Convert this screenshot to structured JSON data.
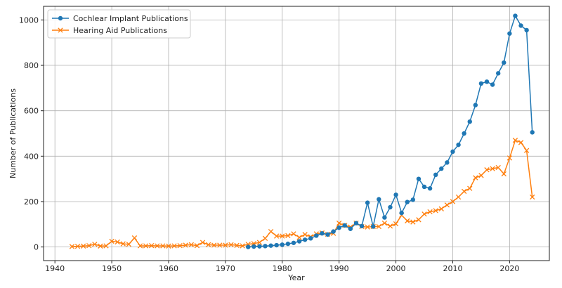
{
  "chart_data": {
    "type": "line",
    "title": "",
    "xlabel": "Year",
    "ylabel": "Number of Publications",
    "xlim": [
      1938,
      2027
    ],
    "ylim": [
      -60,
      1060
    ],
    "xticks": [
      1940,
      1950,
      1960,
      1970,
      1980,
      1990,
      2000,
      2010,
      2020
    ],
    "yticks": [
      0,
      200,
      400,
      600,
      800,
      1000
    ],
    "grid": true,
    "legend_position": "top-left",
    "series": [
      {
        "name": "Cochlear Implant Publications",
        "color": "#1f77b4",
        "marker": "circle",
        "x": [
          1974,
          1975,
          1976,
          1977,
          1978,
          1979,
          1980,
          1981,
          1982,
          1983,
          1984,
          1985,
          1986,
          1987,
          1988,
          1989,
          1990,
          1991,
          1992,
          1993,
          1994,
          1995,
          1996,
          1997,
          1998,
          1999,
          2000,
          2001,
          2002,
          2003,
          2004,
          2005,
          2006,
          2007,
          2008,
          2009,
          2010,
          2011,
          2012,
          2013,
          2014,
          2015,
          2016,
          2017,
          2018,
          2019,
          2020,
          2021,
          2022,
          2023,
          2024
        ],
        "y": [
          0,
          2,
          3,
          4,
          6,
          8,
          10,
          14,
          18,
          25,
          32,
          38,
          50,
          60,
          55,
          68,
          85,
          95,
          80,
          105,
          92,
          195,
          90,
          210,
          130,
          175,
          230,
          150,
          198,
          208,
          300,
          265,
          258,
          318,
          345,
          372,
          420,
          450,
          500,
          552,
          625,
          720,
          728,
          715,
          765,
          812,
          940,
          1018,
          975,
          955,
          505
        ]
      },
      {
        "name": "Hearing Aid Publications",
        "color": "#ff7f0e",
        "marker": "x",
        "x": [
          1943,
          1944,
          1945,
          1946,
          1947,
          1948,
          1949,
          1950,
          1951,
          1952,
          1953,
          1954,
          1955,
          1956,
          1957,
          1958,
          1959,
          1960,
          1961,
          1962,
          1963,
          1964,
          1965,
          1966,
          1967,
          1968,
          1969,
          1970,
          1971,
          1972,
          1973,
          1974,
          1975,
          1976,
          1977,
          1978,
          1979,
          1980,
          1981,
          1982,
          1983,
          1984,
          1985,
          1986,
          1987,
          1988,
          1989,
          1990,
          1991,
          1992,
          1993,
          1994,
          1995,
          1996,
          1997,
          1998,
          1999,
          2000,
          2001,
          2002,
          2003,
          2004,
          2005,
          2006,
          2007,
          2008,
          2009,
          2010,
          2011,
          2012,
          2013,
          2014,
          2015,
          2016,
          2017,
          2018,
          2019,
          2020,
          2021,
          2022,
          2023,
          2024
        ],
        "y": [
          2,
          3,
          4,
          6,
          12,
          4,
          5,
          25,
          22,
          14,
          12,
          40,
          5,
          5,
          6,
          5,
          5,
          4,
          5,
          6,
          8,
          10,
          6,
          20,
          10,
          8,
          8,
          8,
          10,
          7,
          5,
          12,
          15,
          20,
          38,
          68,
          48,
          48,
          50,
          58,
          42,
          55,
          45,
          58,
          62,
          56,
          60,
          105,
          95,
          88,
          105,
          90,
          88,
          90,
          90,
          105,
          92,
          102,
          140,
          115,
          110,
          120,
          145,
          155,
          160,
          168,
          185,
          200,
          220,
          245,
          258,
          305,
          315,
          340,
          345,
          350,
          322,
          392,
          470,
          460,
          425,
          220
        ]
      }
    ]
  }
}
